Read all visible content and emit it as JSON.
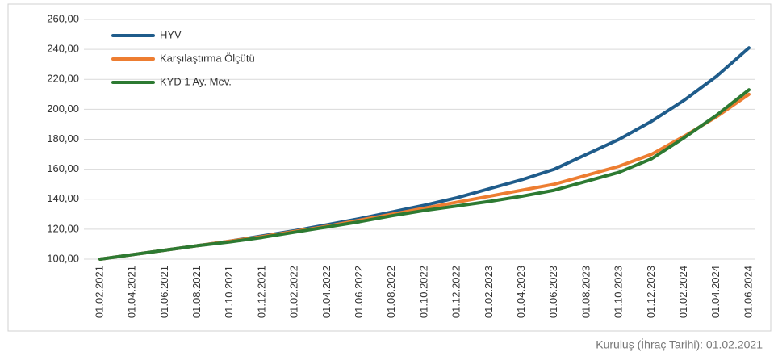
{
  "chart_data": {
    "type": "line",
    "categories": [
      "01.02.2021",
      "01.04.2021",
      "01.06.2021",
      "01.08.2021",
      "01.10.2021",
      "01.12.2021",
      "01.02.2022",
      "01.04.2022",
      "01.06.2022",
      "01.08.2022",
      "01.10.2022",
      "01.12.2022",
      "01.02.2023",
      "01.04.2023",
      "01.06.2023",
      "01.08.2023",
      "01.10.2023",
      "01.12.2023",
      "01.02.2024",
      "01.04.2024",
      "01.06.2024"
    ],
    "series": [
      {
        "name": "HYV",
        "color": "#1f5c8b",
        "values": [
          100,
          103,
          106,
          109,
          112,
          115.5,
          119,
          123,
          127,
          131.5,
          136,
          141,
          147,
          153,
          160,
          170,
          180,
          192,
          206,
          222,
          241
        ]
      },
      {
        "name": "Karşılaştırma Ölçütü",
        "color": "#ed7d31",
        "values": [
          100,
          103,
          106,
          109,
          112,
          115,
          118.5,
          122,
          126,
          130,
          134,
          138,
          142,
          146,
          150,
          156,
          162,
          170,
          182,
          195,
          210
        ]
      },
      {
        "name": "KYD 1 Ay. Mev.",
        "color": "#2d7a32",
        "values": [
          100,
          103,
          106,
          109,
          111.5,
          114.5,
          118,
          121.5,
          125,
          129,
          132.5,
          135.5,
          138.5,
          142,
          146,
          152,
          158,
          167,
          181,
          196,
          213
        ]
      }
    ],
    "ylim": [
      100,
      260
    ],
    "yticks": [
      {
        "value": 100,
        "label": "100,00"
      },
      {
        "value": 120,
        "label": "120,00"
      },
      {
        "value": 140,
        "label": "140,00"
      },
      {
        "value": 160,
        "label": "160,00"
      },
      {
        "value": 180,
        "label": "180,00"
      },
      {
        "value": 200,
        "label": "200,00"
      },
      {
        "value": 220,
        "label": "220,00"
      },
      {
        "value": 240,
        "label": "240,00"
      },
      {
        "value": 260,
        "label": "260,00"
      }
    ],
    "grid": true,
    "legend": "top-left",
    "footnote": "Kuruluş (İhraç Tarihi): 01.02.2021"
  }
}
